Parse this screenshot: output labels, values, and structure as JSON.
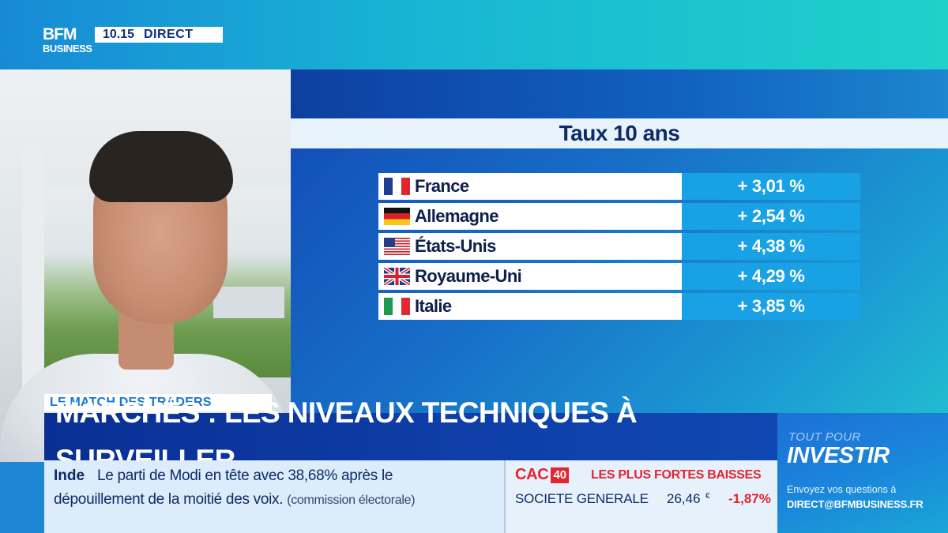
{
  "channel": {
    "logo_top": "BFM",
    "logo_bottom": "BUSINESS",
    "time": "10.15",
    "live_label": "DIRECT"
  },
  "panel": {
    "title": "Taux 10 ans",
    "rows": [
      {
        "country": "France",
        "value": "+ 3,01 %",
        "flag": "france-flag-icon"
      },
      {
        "country": "Allemagne",
        "value": "+ 2,54 %",
        "flag": "germany-flag-icon"
      },
      {
        "country": "États-Unis",
        "value": "+ 4,38 %",
        "flag": "usa-flag-icon"
      },
      {
        "country": "Royaume-Uni",
        "value": "+ 4,29 %",
        "flag": "uk-flag-icon"
      },
      {
        "country": "Italie",
        "value": "+ 3,85 %",
        "flag": "italy-flag-icon"
      }
    ]
  },
  "lower_third": {
    "segment": "LE MATCH DES TRADERS",
    "headline": "MARCHÉS : LES NIVEAUX TECHNIQUES À SURVEILLER"
  },
  "ticker": {
    "label": "Inde",
    "line1": "Le parti de Modi en tête avec 38,68% après le",
    "line2": "dépouillement de la moitié des voix.",
    "source": "(commission électorale)"
  },
  "market": {
    "index_name": "CAC",
    "index_number": "40",
    "heading": "LES PLUS FORTES BAISSES",
    "stock": "SOCIETE GENERALE",
    "price": "26,46",
    "currency": "€",
    "change": "-1,87%"
  },
  "promo": {
    "line1": "TOUT POUR",
    "line2": "INVESTIR",
    "sub1": "Envoyez vos questions à",
    "sub2": "DIRECT@BFMBUSINESS.FR"
  },
  "colors": {
    "brand_blue": "#0e3fa8",
    "accent_cyan": "#18a2e5",
    "negative_red": "#e2262f"
  }
}
